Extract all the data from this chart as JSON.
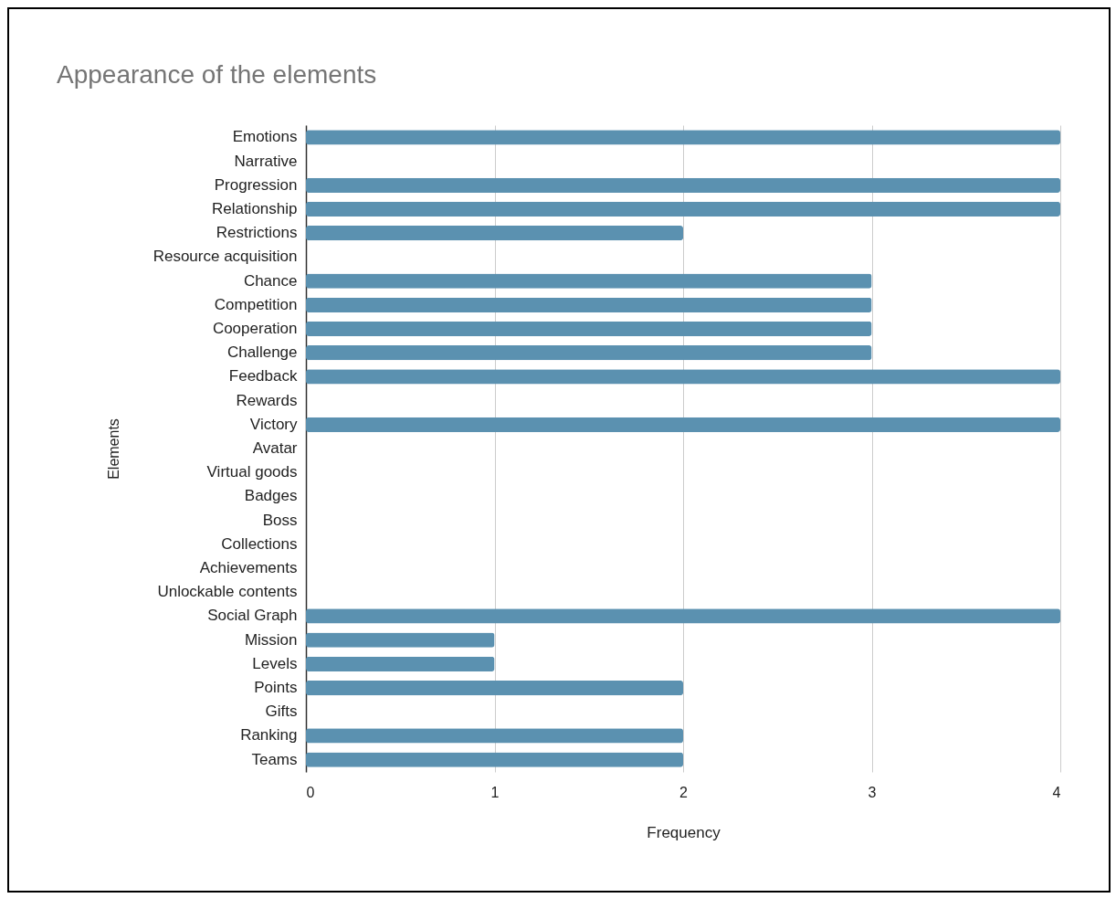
{
  "chart_data": {
    "type": "bar",
    "orientation": "horizontal",
    "title": "Appearance of the elements",
    "xlabel": "Frequency",
    "ylabel": "Elements",
    "categories": [
      "Emotions",
      "Narrative",
      "Progression",
      "Relationship",
      "Restrictions",
      "Resource acquisition",
      "Chance",
      "Competition",
      "Cooperation",
      "Challenge",
      "Feedback",
      "Rewards",
      "Victory",
      "Avatar",
      "Virtual goods",
      "Badges",
      "Boss",
      "Collections",
      "Achievements",
      "Unlockable contents",
      "Social Graph",
      "Mission",
      "Levels",
      "Points",
      "Gifts",
      "Ranking",
      "Teams"
    ],
    "values": [
      4,
      0,
      4,
      4,
      2,
      0,
      3,
      3,
      3,
      3,
      4,
      0,
      4,
      0,
      0,
      0,
      0,
      0,
      0,
      0,
      4,
      1,
      1,
      2,
      0,
      2,
      2
    ],
    "color": "#5b91b0",
    "xlim": [
      0,
      4
    ],
    "xticks": [
      0,
      1,
      2,
      3,
      4
    ],
    "grid": "x"
  }
}
